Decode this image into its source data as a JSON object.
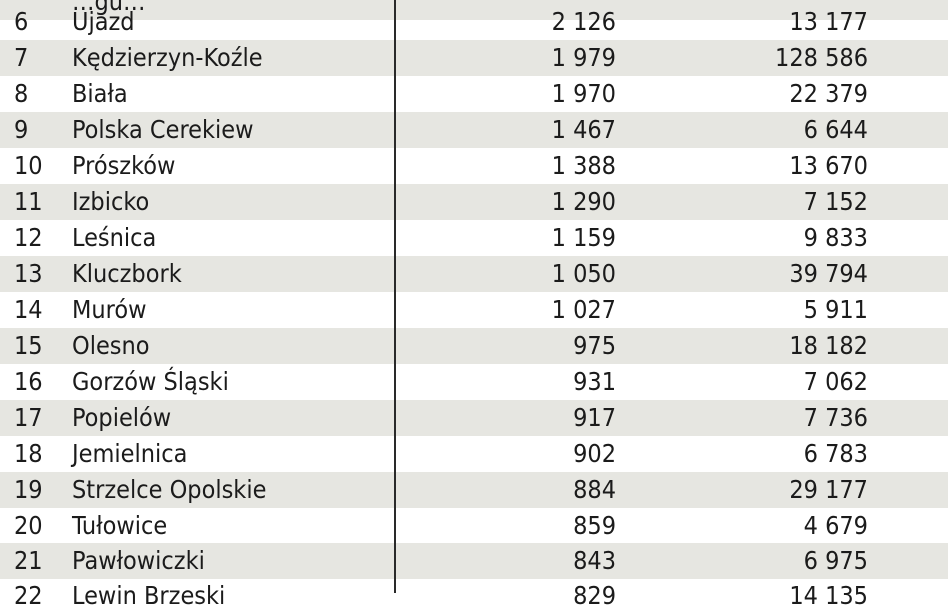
{
  "rows": [
    {
      "rank": "",
      "name": "…gu…",
      "v1": "",
      "v2": ""
    },
    {
      "rank": "6",
      "name": "Ujazd",
      "v1": "2 126",
      "v2": "13 177"
    },
    {
      "rank": "7",
      "name": "Kędzierzyn-Koźle",
      "v1": "1 979",
      "v2": "128 586"
    },
    {
      "rank": "8",
      "name": "Biała",
      "v1": "1 970",
      "v2": "22 379"
    },
    {
      "rank": "9",
      "name": "Polska Cerekiew",
      "v1": "1 467",
      "v2": "6 644"
    },
    {
      "rank": "10",
      "name": "Prószków",
      "v1": "1 388",
      "v2": "13 670"
    },
    {
      "rank": "11",
      "name": "Izbicko",
      "v1": "1 290",
      "v2": "7 152"
    },
    {
      "rank": "12",
      "name": "Leśnica",
      "v1": "1 159",
      "v2": "9 833"
    },
    {
      "rank": "13",
      "name": "Kluczbork",
      "v1": "1 050",
      "v2": "39 794"
    },
    {
      "rank": "14",
      "name": "Murów",
      "v1": "1 027",
      "v2": "5 911"
    },
    {
      "rank": "15",
      "name": "Olesno",
      "v1": "975",
      "v2": "18 182"
    },
    {
      "rank": "16",
      "name": "Gorzów Śląski",
      "v1": "931",
      "v2": "7 062"
    },
    {
      "rank": "17",
      "name": "Popielów",
      "v1": "917",
      "v2": "7 736"
    },
    {
      "rank": "18",
      "name": "Jemielnica",
      "v1": "902",
      "v2": "6 783"
    },
    {
      "rank": "19",
      "name": "Strzelce Opolskie",
      "v1": "884",
      "v2": "29 177"
    },
    {
      "rank": "20",
      "name": "Tułowice",
      "v1": "859",
      "v2": "4 679"
    },
    {
      "rank": "21",
      "name": "Pawłowiczki",
      "v1": "843",
      "v2": "6 975"
    },
    {
      "rank": "22",
      "name": "Lewin Brzeski",
      "v1": "829",
      "v2": "14 135"
    }
  ],
  "colors": {
    "shade": "#e6e6e1",
    "text": "#1b1b1b",
    "divider": "#2a2a2a"
  }
}
